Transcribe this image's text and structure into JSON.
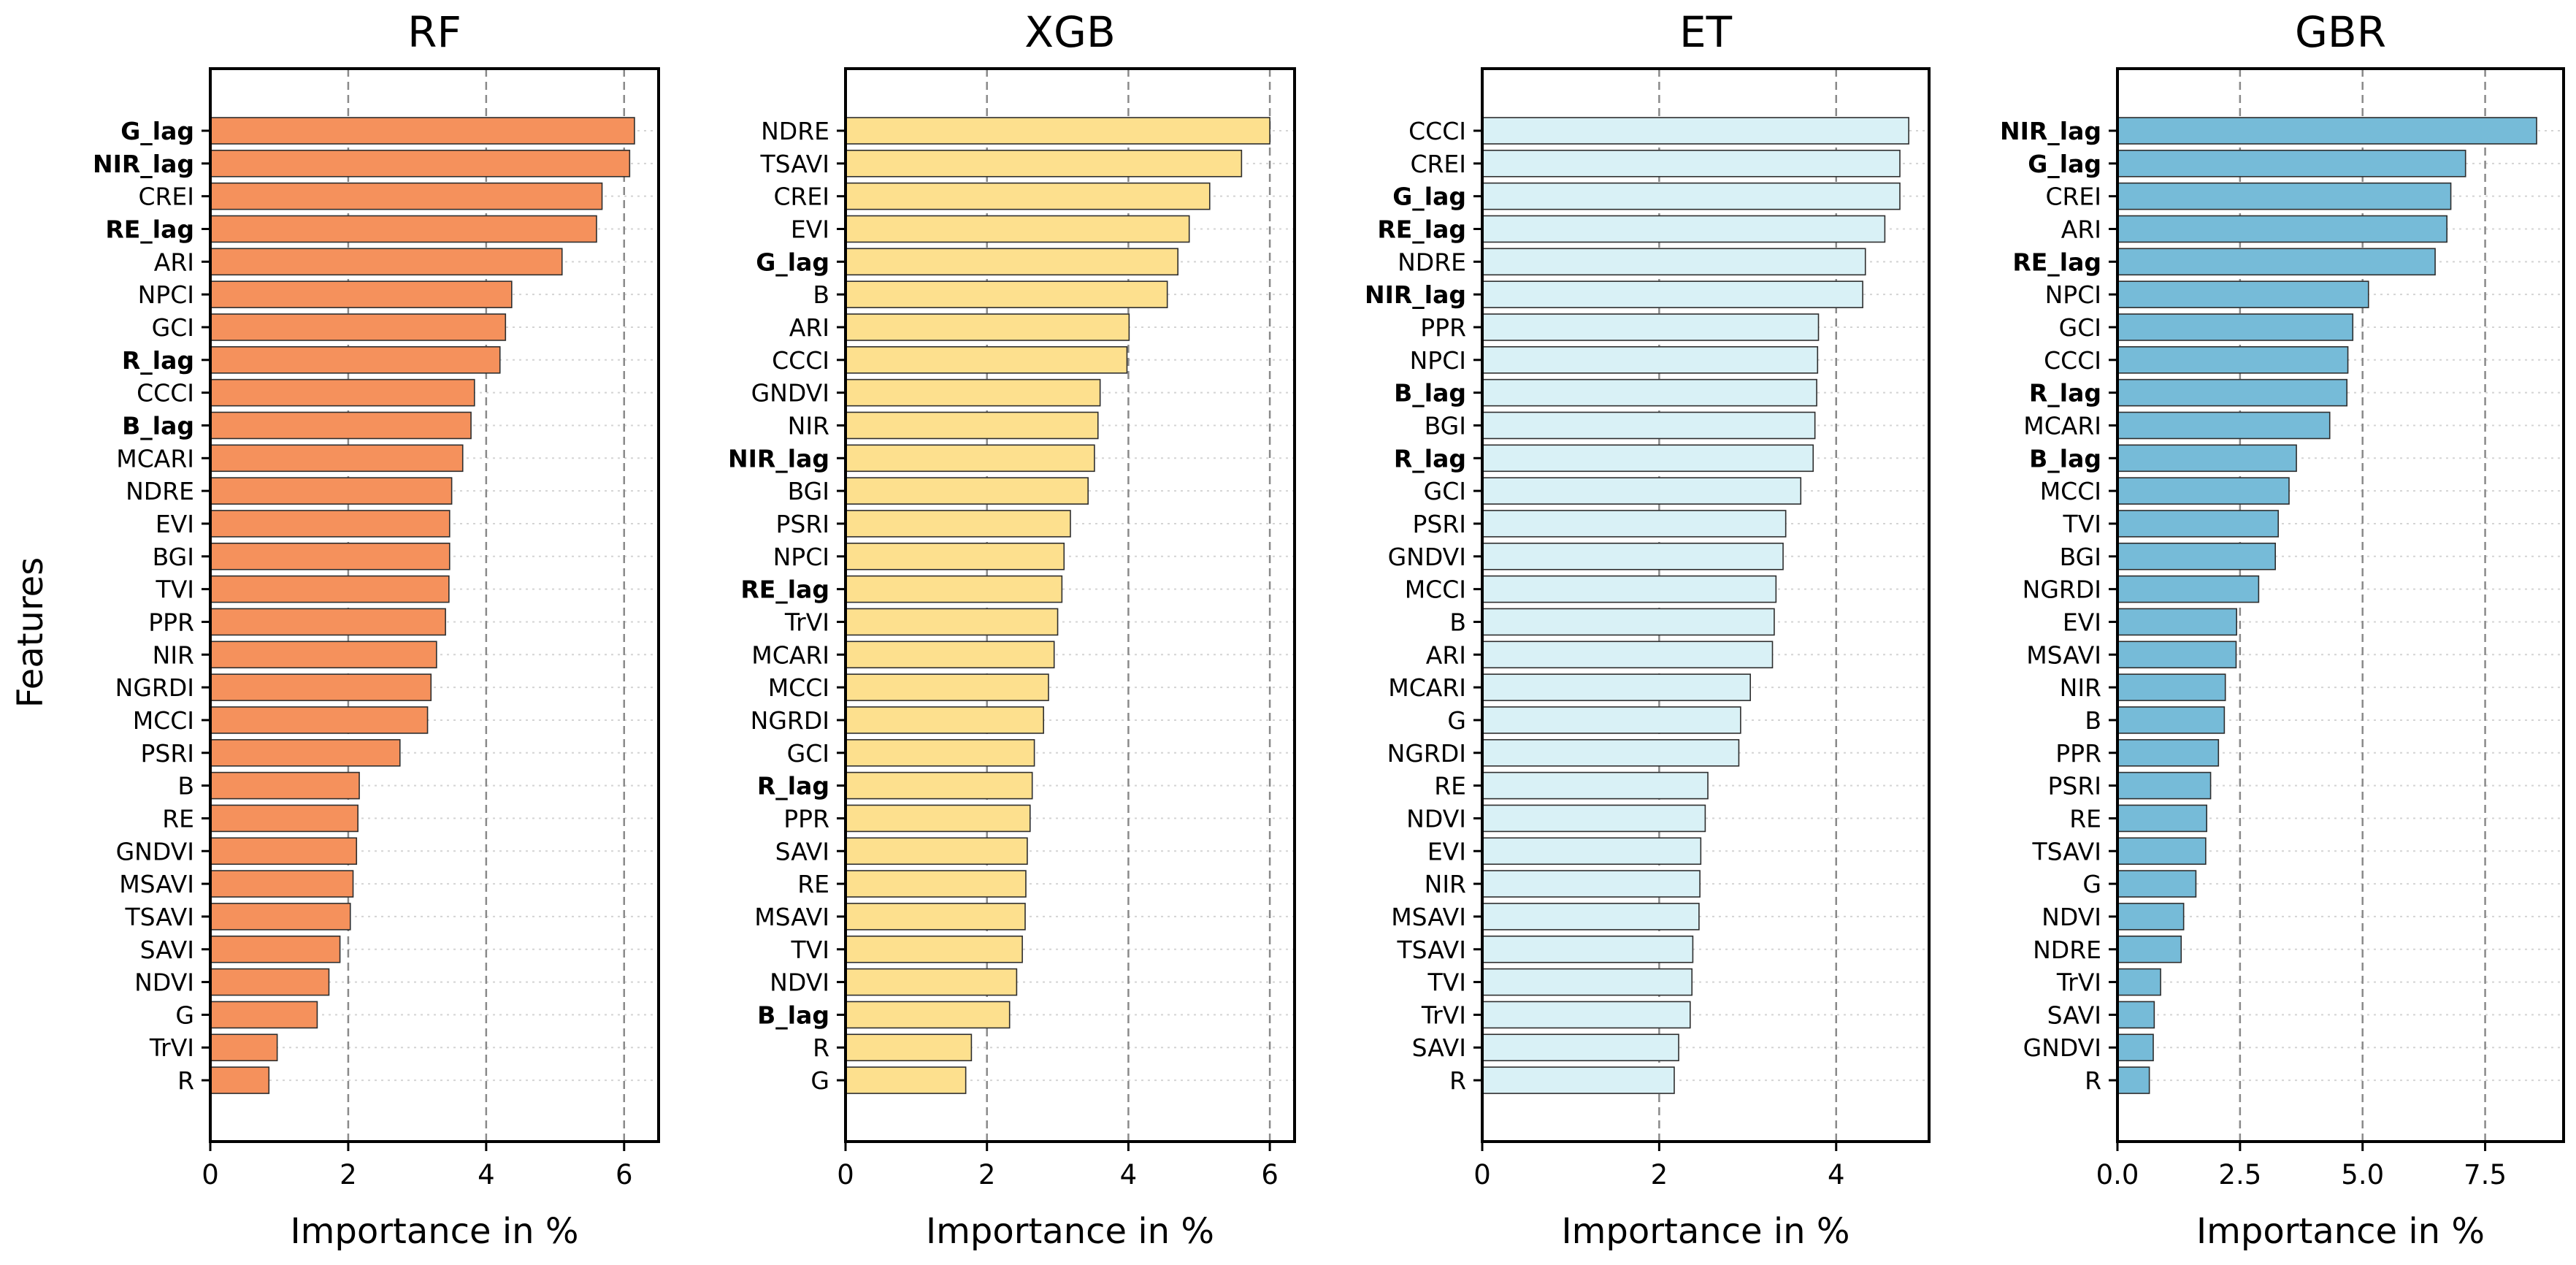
{
  "figure": {
    "ylabel": "Features"
  },
  "chart_data": [
    {
      "type": "bar",
      "orientation": "horizontal",
      "title": "RF",
      "xlabel": "Importance in %",
      "xlim": [
        0,
        6.5
      ],
      "xticks": [
        0,
        2,
        4,
        6
      ],
      "xtick_labels": [
        "0",
        "2",
        "4",
        "6"
      ],
      "color": "#f5915c",
      "grid": "x-dashed",
      "categories": [
        "G_lag",
        "NIR_lag",
        "CREI",
        "RE_lag",
        "ARI",
        "NPCI",
        "GCI",
        "R_lag",
        "CCCI",
        "B_lag",
        "MCARI",
        "NDRE",
        "EVI",
        "BGI",
        "TVI",
        "PPR",
        "NIR",
        "NGRDI",
        "MCCI",
        "PSRI",
        "B",
        "RE",
        "GNDVI",
        "MSAVI",
        "TSAVI",
        "SAVI",
        "NDVI",
        "G",
        "TrVI",
        "R"
      ],
      "values": [
        6.15,
        6.08,
        5.68,
        5.6,
        5.1,
        4.37,
        4.28,
        4.2,
        3.83,
        3.78,
        3.66,
        3.5,
        3.47,
        3.47,
        3.46,
        3.41,
        3.28,
        3.2,
        3.15,
        2.75,
        2.16,
        2.14,
        2.12,
        2.07,
        2.03,
        1.88,
        1.72,
        1.55,
        0.97,
        0.85
      ],
      "bold": [
        "G_lag",
        "NIR_lag",
        "RE_lag",
        "R_lag",
        "B_lag"
      ]
    },
    {
      "type": "bar",
      "orientation": "horizontal",
      "title": "XGB",
      "xlabel": "Importance in %",
      "xlim": [
        0,
        6.35
      ],
      "xticks": [
        0,
        2,
        4,
        6
      ],
      "xtick_labels": [
        "0",
        "2",
        "4",
        "6"
      ],
      "color": "#fde08e",
      "grid": "x-dashed",
      "categories": [
        "NDRE",
        "TSAVI",
        "CREI",
        "EVI",
        "G_lag",
        "B",
        "ARI",
        "CCCI",
        "GNDVI",
        "NIR",
        "NIR_lag",
        "BGI",
        "PSRI",
        "NPCI",
        "RE_lag",
        "TrVI",
        "MCARI",
        "MCCI",
        "NGRDI",
        "GCI",
        "R_lag",
        "PPR",
        "SAVI",
        "RE",
        "MSAVI",
        "TVI",
        "NDVI",
        "B_lag",
        "R",
        "G"
      ],
      "values": [
        6.0,
        5.6,
        5.15,
        4.86,
        4.7,
        4.55,
        4.01,
        3.98,
        3.6,
        3.57,
        3.52,
        3.43,
        3.18,
        3.09,
        3.06,
        3.0,
        2.95,
        2.87,
        2.8,
        2.67,
        2.64,
        2.61,
        2.57,
        2.55,
        2.54,
        2.5,
        2.42,
        2.32,
        1.78,
        1.7
      ],
      "bold": [
        "G_lag",
        "NIR_lag",
        "RE_lag",
        "R_lag",
        "B_lag"
      ]
    },
    {
      "type": "bar",
      "orientation": "horizontal",
      "title": "ET",
      "xlabel": "Importance in %",
      "xlim": [
        0,
        5.05
      ],
      "xticks": [
        0,
        2,
        4
      ],
      "xtick_labels": [
        "0",
        "2",
        "4"
      ],
      "color": "#d9f1f6",
      "grid": "x-dashed",
      "categories": [
        "CCCI",
        "CREI",
        "G_lag",
        "RE_lag",
        "NDRE",
        "NIR_lag",
        "PPR",
        "NPCI",
        "B_lag",
        "BGI",
        "R_lag",
        "GCI",
        "PSRI",
        "GNDVI",
        "MCCI",
        "B",
        "ARI",
        "MCARI",
        "G",
        "NGRDI",
        "RE",
        "NDVI",
        "EVI",
        "NIR",
        "MSAVI",
        "TSAVI",
        "TVI",
        "TrVI",
        "SAVI",
        "R"
      ],
      "values": [
        4.82,
        4.72,
        4.72,
        4.55,
        4.33,
        4.3,
        3.8,
        3.79,
        3.78,
        3.76,
        3.74,
        3.6,
        3.43,
        3.4,
        3.32,
        3.3,
        3.28,
        3.03,
        2.92,
        2.9,
        2.55,
        2.52,
        2.47,
        2.46,
        2.45,
        2.38,
        2.37,
        2.35,
        2.22,
        2.17
      ],
      "bold": [
        "G_lag",
        "RE_lag",
        "NIR_lag",
        "B_lag",
        "R_lag"
      ]
    },
    {
      "type": "bar",
      "orientation": "horizontal",
      "title": "GBR",
      "xlabel": "Importance in %",
      "xlim": [
        0,
        9.1
      ],
      "xticks": [
        0,
        2.5,
        5,
        7.5
      ],
      "xtick_labels": [
        "0.0",
        "2.5",
        "5.0",
        "7.5"
      ],
      "color": "#76bbd8",
      "grid": "x-dashed",
      "categories": [
        "NIR_lag",
        "G_lag",
        "CREI",
        "ARI",
        "RE_lag",
        "NPCI",
        "GCI",
        "CCCI",
        "R_lag",
        "MCARI",
        "B_lag",
        "MCCI",
        "TVI",
        "BGI",
        "NGRDI",
        "EVI",
        "MSAVI",
        "NIR",
        "B",
        "PPR",
        "PSRI",
        "RE",
        "TSAVI",
        "G",
        "NDVI",
        "NDRE",
        "TrVI",
        "SAVI",
        "GNDVI",
        "R"
      ],
      "values": [
        8.55,
        7.1,
        6.8,
        6.72,
        6.48,
        5.12,
        4.8,
        4.7,
        4.68,
        4.33,
        3.65,
        3.5,
        3.28,
        3.22,
        2.88,
        2.43,
        2.42,
        2.2,
        2.18,
        2.06,
        1.9,
        1.82,
        1.8,
        1.6,
        1.35,
        1.3,
        0.88,
        0.75,
        0.73,
        0.65
      ],
      "bold": [
        "NIR_lag",
        "G_lag",
        "RE_lag",
        "R_lag",
        "B_lag"
      ]
    }
  ]
}
